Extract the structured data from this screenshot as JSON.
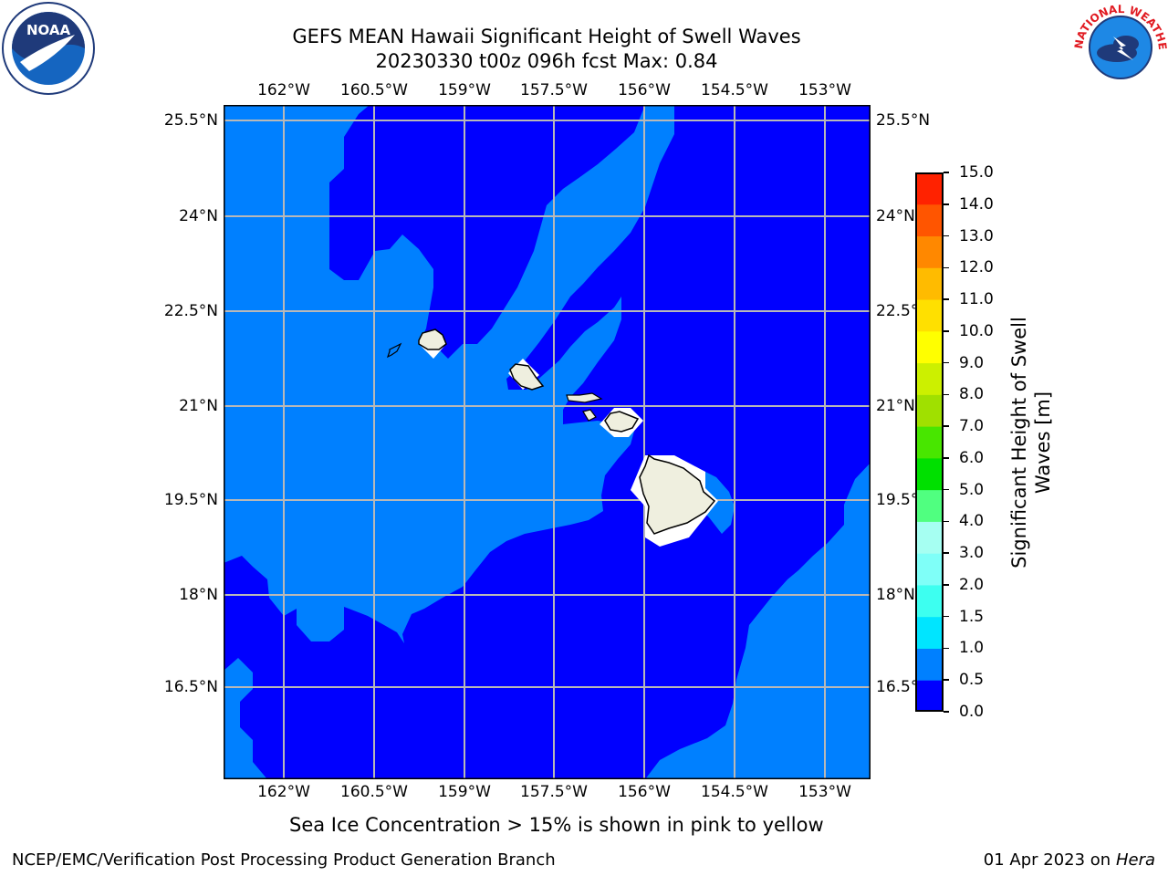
{
  "title": {
    "line1": "GEFS MEAN Hawaii Significant Height of Swell Waves",
    "line2": "20230330 t00z 096h fcst   Max: 0.84"
  },
  "map": {
    "lon_range": [
      -163.0,
      -151.6
    ],
    "lat_range": [
      15.0,
      25.8
    ],
    "lon_ticks": [
      "162°W",
      "160.5°W",
      "159°W",
      "157.5°W",
      "156°W",
      "154.5°W",
      "153°W"
    ],
    "lat_ticks": [
      "25.5°N",
      "24°N",
      "22.5°N",
      "21°N",
      "19.5°N",
      "18°N",
      "16.5°N"
    ],
    "colors": {
      "band_0_0_5": "#0000ff",
      "band_0_5_1_0": "#0080ff",
      "land": "#efefdf",
      "grid": "#b8b8b8"
    }
  },
  "colorbar": {
    "label_line1": "Significant Height of Swell",
    "label_line2": "Waves [m]",
    "ticks": [
      "0.0",
      "0.5",
      "1.0",
      "1.5",
      "2.0",
      "3.0",
      "4.0",
      "5.0",
      "6.0",
      "7.0",
      "8.0",
      "9.0",
      "10.0",
      "11.0",
      "12.0",
      "13.0",
      "14.0",
      "15.0"
    ],
    "colors": [
      "#0000ff",
      "#0080ff",
      "#00e5ff",
      "#3dfff0",
      "#7ffff8",
      "#a6fff2",
      "#50ff80",
      "#00e000",
      "#48e600",
      "#a0e000",
      "#ccf000",
      "#ffff00",
      "#ffe000",
      "#ffbb00",
      "#ff8800",
      "#ff5500",
      "#ff2200"
    ]
  },
  "note": "Sea Ice Concentration > 15% is shown in pink to yellow",
  "footer": {
    "left": "NCEP/EMC/Verification Post Processing Product Generation Branch",
    "right_date": "01 Apr 2023 on ",
    "right_host": "Hera"
  },
  "logos": {
    "left": "NOAA",
    "right": "NATIONAL WEATHER SERVICE"
  }
}
